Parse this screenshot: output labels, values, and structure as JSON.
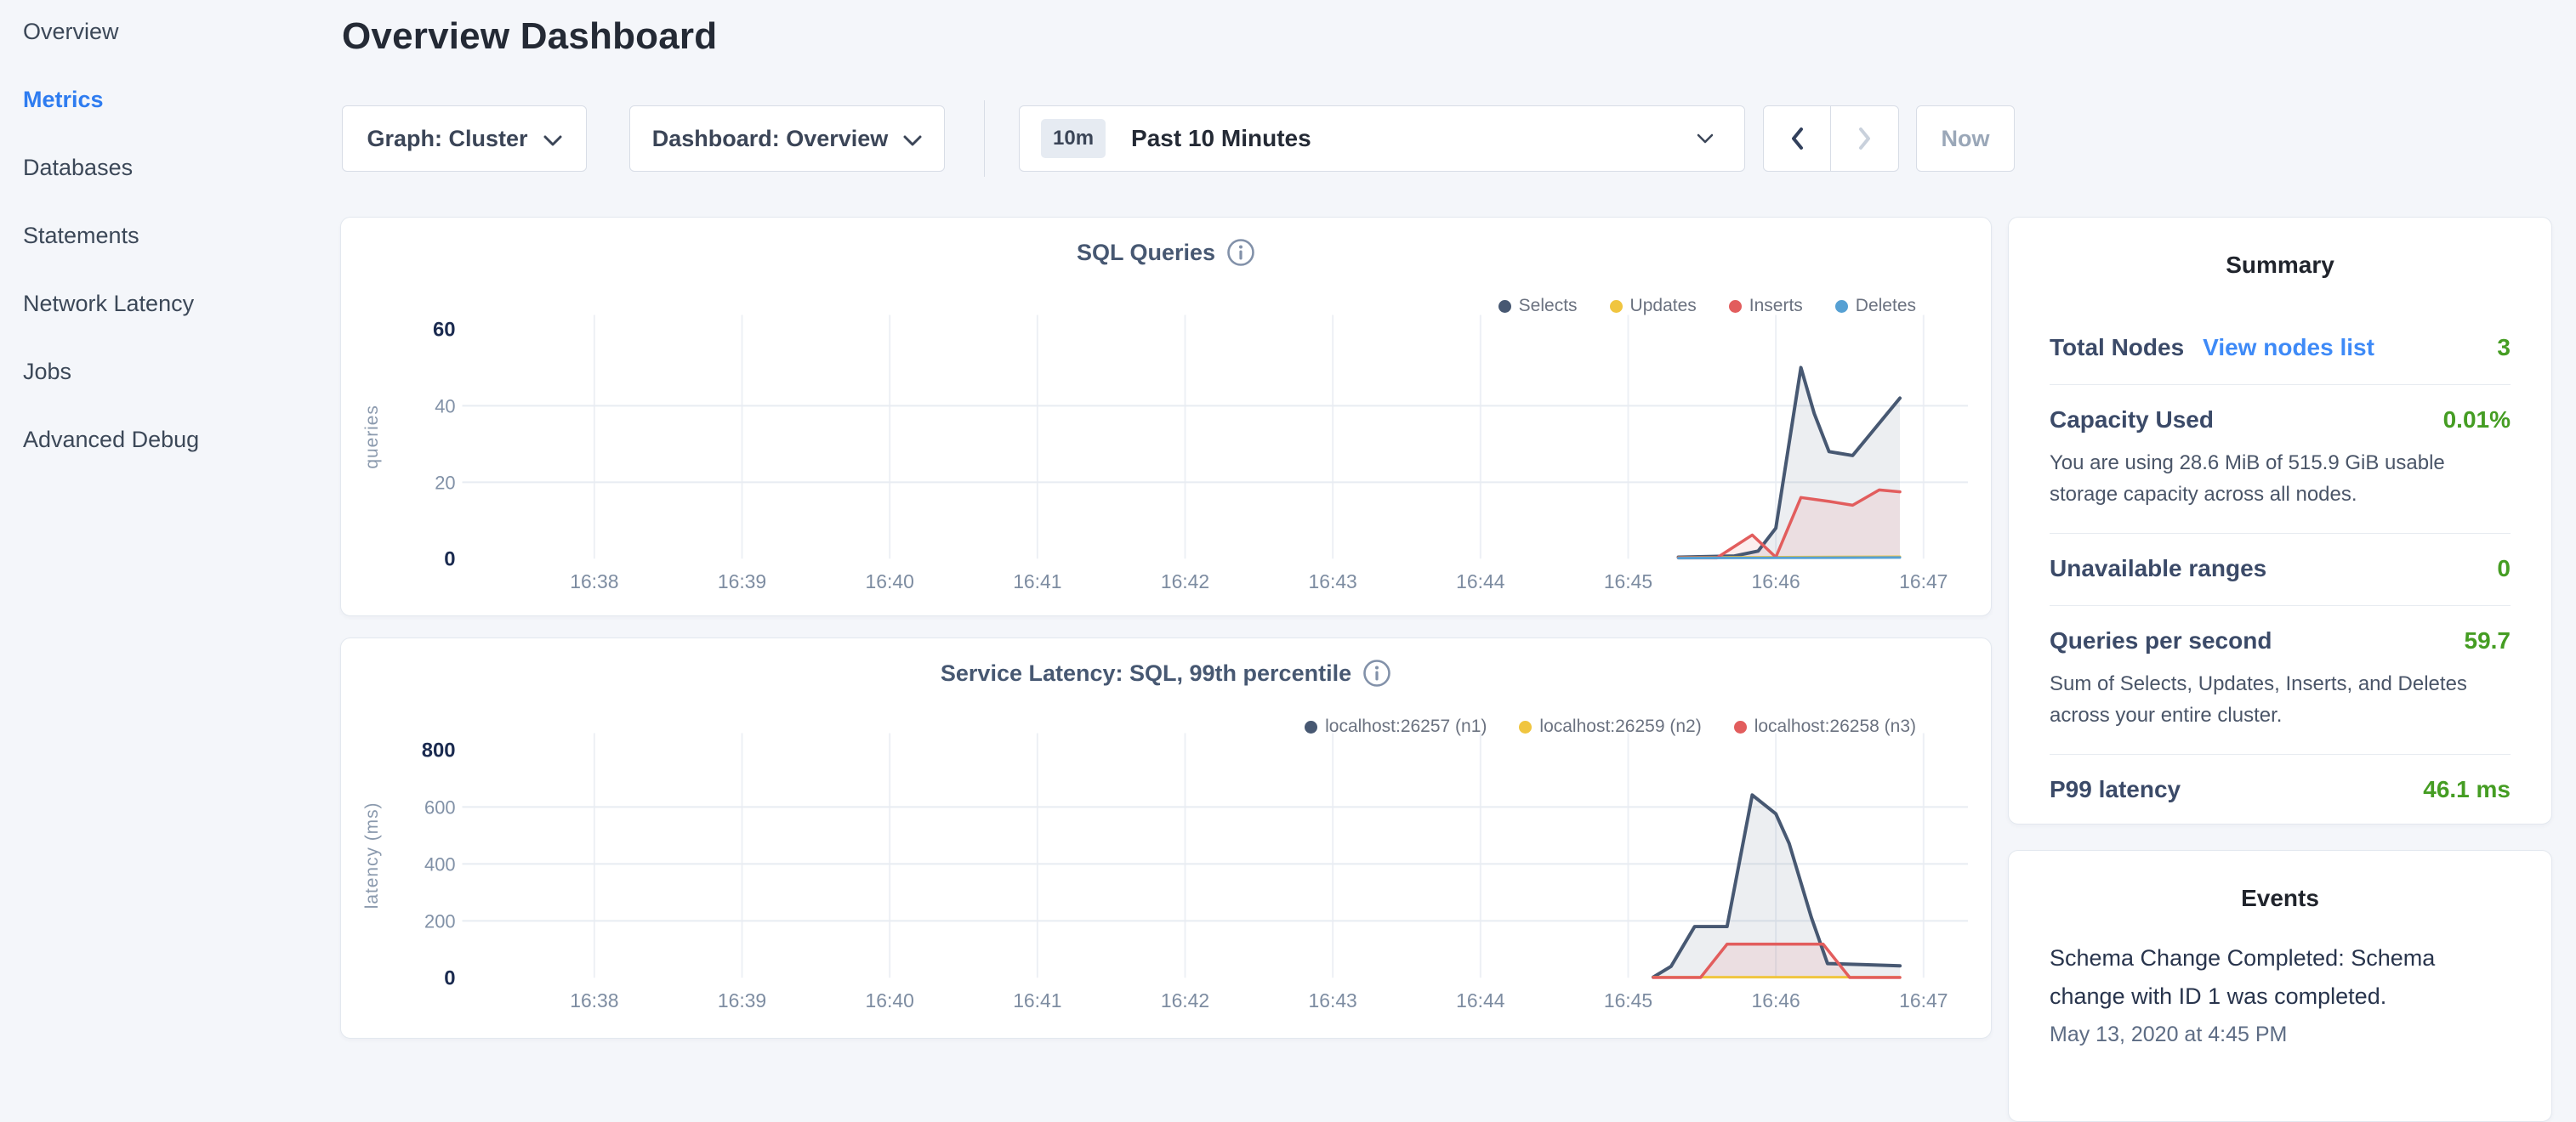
{
  "sidebar": {
    "items": [
      {
        "label": "Overview",
        "active": false
      },
      {
        "label": "Metrics",
        "active": true
      },
      {
        "label": "Databases",
        "active": false
      },
      {
        "label": "Statements",
        "active": false
      },
      {
        "label": "Network Latency",
        "active": false
      },
      {
        "label": "Jobs",
        "active": false
      },
      {
        "label": "Advanced Debug",
        "active": false
      }
    ]
  },
  "header": {
    "title": "Overview Dashboard"
  },
  "controls": {
    "graph_dropdown": {
      "label": "Graph: Cluster",
      "icon": "chevron-down-icon"
    },
    "dashboard_dropdown": {
      "label": "Dashboard: Overview",
      "icon": "chevron-down-icon"
    },
    "time_range": {
      "badge": "10m",
      "label": "Past 10 Minutes",
      "icon": "chevron-down-icon"
    },
    "prev_button": {
      "icon": "chevron-left-icon",
      "enabled": true
    },
    "next_button": {
      "icon": "chevron-right-icon",
      "enabled": false
    },
    "now_button": "Now"
  },
  "summary": {
    "title": "Summary",
    "rows": [
      {
        "label": "Total Nodes",
        "link": "View nodes list",
        "value": "3"
      },
      {
        "label": "Capacity Used",
        "value": "0.01%",
        "desc": "You are using 28.6 MiB of 515.9 GiB usable storage capacity across all nodes."
      },
      {
        "label": "Unavailable ranges",
        "value": "0"
      },
      {
        "label": "Queries per second",
        "value": "59.7",
        "desc": "Sum of Selects, Updates, Inserts, and Deletes across your entire cluster."
      },
      {
        "label": "P99 latency",
        "value": "46.1 ms"
      }
    ]
  },
  "events": {
    "title": "Events",
    "items": [
      {
        "text": "Schema Change Completed: Schema change with ID 1 was completed.",
        "time": "May 13, 2020 at 4:45 PM"
      }
    ]
  },
  "colors": {
    "page_bg": "#f4f6fa",
    "active_nav": "#2e7cf0",
    "link_blue": "#3e8af7",
    "value_green": "#459d23",
    "series_navy": "#475872",
    "series_yellow": "#f0c53f",
    "series_red": "#e25d5d",
    "series_blue": "#56a0d3"
  },
  "chart_data": [
    {
      "type": "area",
      "title": "SQL Queries",
      "ylabel": "queries",
      "ylim": [
        0,
        60
      ],
      "grid": true,
      "legend_position": "top-right",
      "x_ticks": [
        "16:38",
        "16:39",
        "16:40",
        "16:41",
        "16:42",
        "16:43",
        "16:44",
        "16:45",
        "16:46",
        "16:47"
      ],
      "y_ticks": [
        {
          "v": 60,
          "bold": true,
          "grid": false
        },
        {
          "v": 40,
          "bold": false,
          "grid": true
        },
        {
          "v": 20,
          "bold": false,
          "grid": true
        },
        {
          "v": 0,
          "bold": true,
          "grid": false
        }
      ],
      "x_unit": "minutes after 16:00",
      "series": [
        {
          "name": "Selects",
          "color": "#475872",
          "fill": "rgba(71,88,114,0.10)",
          "width": 4,
          "points": [
            [
              45.34,
              0.4
            ],
            [
              45.72,
              0.7
            ],
            [
              45.88,
              2
            ],
            [
              46.0,
              8
            ],
            [
              46.17,
              50
            ],
            [
              46.26,
              38
            ],
            [
              46.36,
              28
            ],
            [
              46.52,
              27
            ],
            [
              46.84,
              42
            ]
          ]
        },
        {
          "name": "Updates",
          "color": "#f0c53f",
          "fill": "none",
          "width": 3,
          "points": [
            [
              45.34,
              0.3
            ],
            [
              46.84,
              0.5
            ]
          ]
        },
        {
          "name": "Inserts",
          "color": "#e25d5d",
          "fill": "rgba(226,93,93,0.10)",
          "width": 3.5,
          "points": [
            [
              45.34,
              0.2
            ],
            [
              45.6,
              0.2
            ],
            [
              45.84,
              6.2
            ],
            [
              46.0,
              0.4
            ],
            [
              46.17,
              16
            ],
            [
              46.36,
              15
            ],
            [
              46.52,
              14
            ],
            [
              46.7,
              18
            ],
            [
              46.84,
              17.5
            ]
          ]
        },
        {
          "name": "Deletes",
          "color": "#56a0d3",
          "fill": "none",
          "width": 3,
          "points": [
            [
              45.34,
              0.15
            ],
            [
              46.84,
              0.3
            ]
          ]
        }
      ]
    },
    {
      "type": "area",
      "title": "Service Latency: SQL, 99th percentile",
      "ylabel": "latency (ms)",
      "ylim": [
        0,
        800
      ],
      "grid": true,
      "legend_position": "top-right",
      "x_ticks": [
        "16:38",
        "16:39",
        "16:40",
        "16:41",
        "16:42",
        "16:43",
        "16:44",
        "16:45",
        "16:46",
        "16:47"
      ],
      "y_ticks": [
        {
          "v": 800,
          "bold": true,
          "grid": false
        },
        {
          "v": 600,
          "bold": false,
          "grid": true
        },
        {
          "v": 400,
          "bold": false,
          "grid": true
        },
        {
          "v": 200,
          "bold": false,
          "grid": true
        },
        {
          "v": 0,
          "bold": true,
          "grid": false
        }
      ],
      "x_unit": "minutes after 16:00",
      "series": [
        {
          "name": "localhost:26257 (n1)",
          "color": "#475872",
          "fill": "rgba(71,88,114,0.10)",
          "width": 4,
          "points": [
            [
              45.17,
              2
            ],
            [
              45.29,
              40
            ],
            [
              45.45,
              180
            ],
            [
              45.67,
              180
            ],
            [
              45.84,
              642
            ],
            [
              46.0,
              576
            ],
            [
              46.09,
              472
            ],
            [
              46.24,
              212
            ],
            [
              46.35,
              50
            ],
            [
              46.6,
              46
            ],
            [
              46.84,
              42
            ]
          ]
        },
        {
          "name": "localhost:26259 (n2)",
          "color": "#f0c53f",
          "fill": "none",
          "width": 3,
          "points": [
            [
              45.17,
              2
            ],
            [
              46.84,
              2
            ]
          ]
        },
        {
          "name": "localhost:26258 (n3)",
          "color": "#e25d5d",
          "fill": "rgba(226,93,93,0.10)",
          "width": 3.5,
          "points": [
            [
              45.17,
              1
            ],
            [
              45.49,
              1
            ],
            [
              45.67,
              118
            ],
            [
              46.32,
              118
            ],
            [
              46.5,
              1
            ],
            [
              46.84,
              1
            ]
          ]
        }
      ]
    }
  ]
}
